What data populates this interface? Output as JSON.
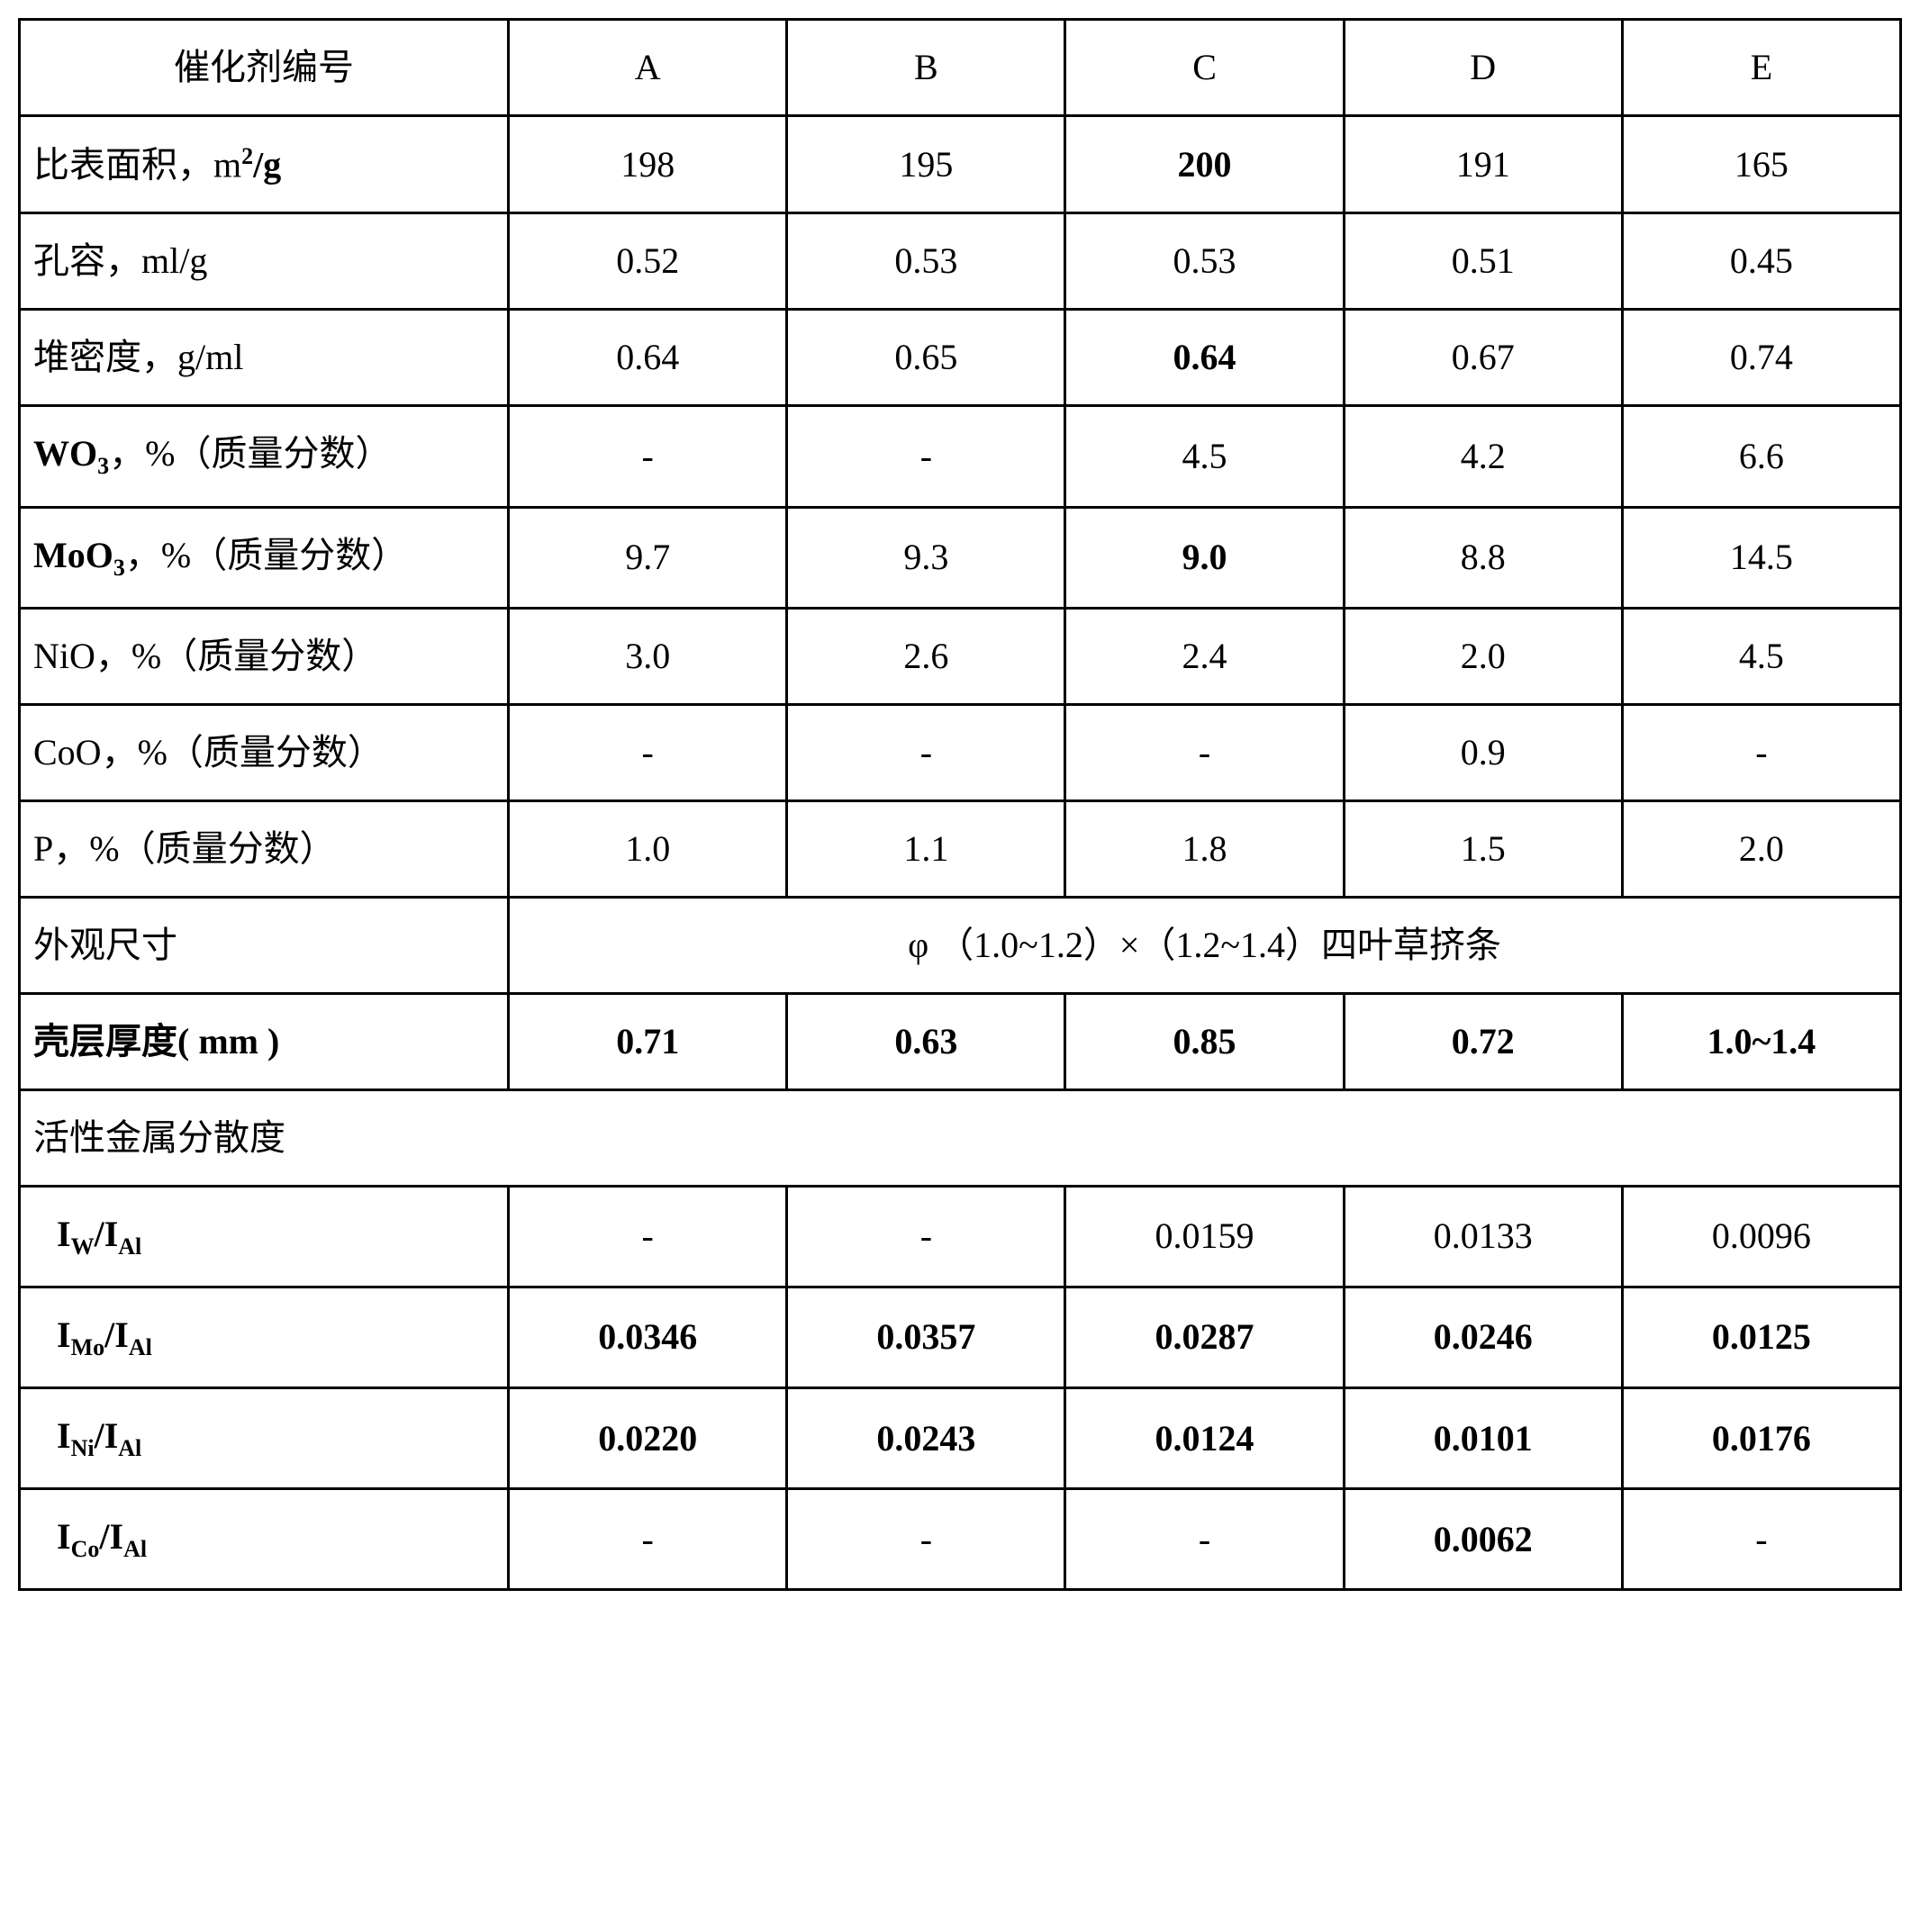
{
  "table": {
    "border_color": "#000000",
    "background_color": "#ffffff",
    "text_color": "#000000",
    "font_family": "Times New Roman / SimSun serif",
    "base_fontsize_pt": 30,
    "columns": [
      "label",
      "A",
      "B",
      "C",
      "D",
      "E"
    ],
    "col_widths_pct": [
      26,
      14.8,
      14.8,
      14.8,
      14.8,
      14.8
    ],
    "header": {
      "label": "催化剂编号",
      "A": "A",
      "B": "B",
      "C": "C",
      "D": "D",
      "E": "E"
    },
    "rows": {
      "surface_area": {
        "label_pre": "比表面积，m",
        "label_sup": "2",
        "label_post": "/g",
        "label_bold_tail": true,
        "A": "198",
        "B": "195",
        "C": "200",
        "D": "191",
        "E": "165",
        "bold": {
          "C": true
        }
      },
      "pore_volume": {
        "label": "孔容，ml/g",
        "A": "0.52",
        "B": "0.53",
        "C": "0.53",
        "D": "0.51",
        "E": "0.45"
      },
      "bulk_density": {
        "label": "堆密度，g/ml",
        "A": "0.64",
        "B": "0.65",
        "C": "0.64",
        "D": "0.67",
        "E": "0.74",
        "bold": {
          "C": true
        }
      },
      "wo3": {
        "label_pre": "WO",
        "label_sub": "3",
        "label_post": "，%（质量分数）",
        "A": "-",
        "B": "-",
        "C": "4.5",
        "D": "4.2",
        "E": "6.6"
      },
      "moo3": {
        "label_pre": "MoO",
        "label_sub": "3",
        "label_post": "，%（质量分数）",
        "A": "9.7",
        "B": "9.3",
        "C": "9.0",
        "D": "8.8",
        "E": "14.5",
        "bold": {
          "C": true
        }
      },
      "nio": {
        "label": "NiO，%（质量分数）",
        "A": "3.0",
        "B": "2.6",
        "C": "2.4",
        "D": "2.0",
        "E": "4.5"
      },
      "coo": {
        "label": "CoO，%（质量分数）",
        "A": "-",
        "B": "-",
        "C": "-",
        "D": "0.9",
        "E": "-"
      },
      "p": {
        "label": "P，%（质量分数）",
        "A": "1.0",
        "B": "1.1",
        "C": "1.8",
        "D": "1.5",
        "E": "2.0"
      },
      "appearance": {
        "label": "外观尺寸",
        "merged_value": "φ （1.0~1.2）×（1.2~1.4）四叶草挤条"
      },
      "shell_thickness": {
        "label": "壳层厚度( mm )",
        "label_bold": true,
        "A": "0.71",
        "B": "0.63",
        "C": "0.85",
        "D": "0.72",
        "E": "1.0~1.4",
        "bold": {
          "A": true,
          "B": true,
          "C": true,
          "D": true,
          "E": true
        }
      },
      "dispersion_header": {
        "label": "活性金属分散度"
      },
      "iw_ial": {
        "ratio_top_pre": "I",
        "ratio_top_sub": "W",
        "ratio_bot_pre": "I",
        "ratio_bot_sub": "Al",
        "A": "-",
        "B": "-",
        "C": "0.0159",
        "D": "0.0133",
        "E": "0.0096"
      },
      "imo_ial": {
        "ratio_top_pre": "I",
        "ratio_top_sub": "Mo",
        "ratio_bot_pre": "I",
        "ratio_bot_sub": "Al",
        "A": "0.0346",
        "B": "0.0357",
        "C": "0.0287",
        "D": "0.0246",
        "E": "0.0125",
        "bold": {
          "A": true,
          "B": true,
          "C": true,
          "D": true,
          "E": true
        }
      },
      "ini_ial": {
        "ratio_top_pre": "I",
        "ratio_top_sub": "Ni",
        "ratio_bot_pre": "I",
        "ratio_bot_sub": "Al",
        "A": "0.0220",
        "B": "0.0243",
        "C": "0.0124",
        "D": "0.0101",
        "E": "0.0176",
        "bold": {
          "A": true,
          "B": true,
          "C": true,
          "D": true,
          "E": true
        }
      },
      "ico_ial": {
        "ratio_top_pre": "I",
        "ratio_top_sub": "Co",
        "ratio_bot_pre": "I",
        "ratio_bot_sub": "Al",
        "A": "-",
        "B": "-",
        "C": "-",
        "D": "0.0062",
        "E": "-",
        "bold": {
          "D": true
        }
      }
    }
  }
}
